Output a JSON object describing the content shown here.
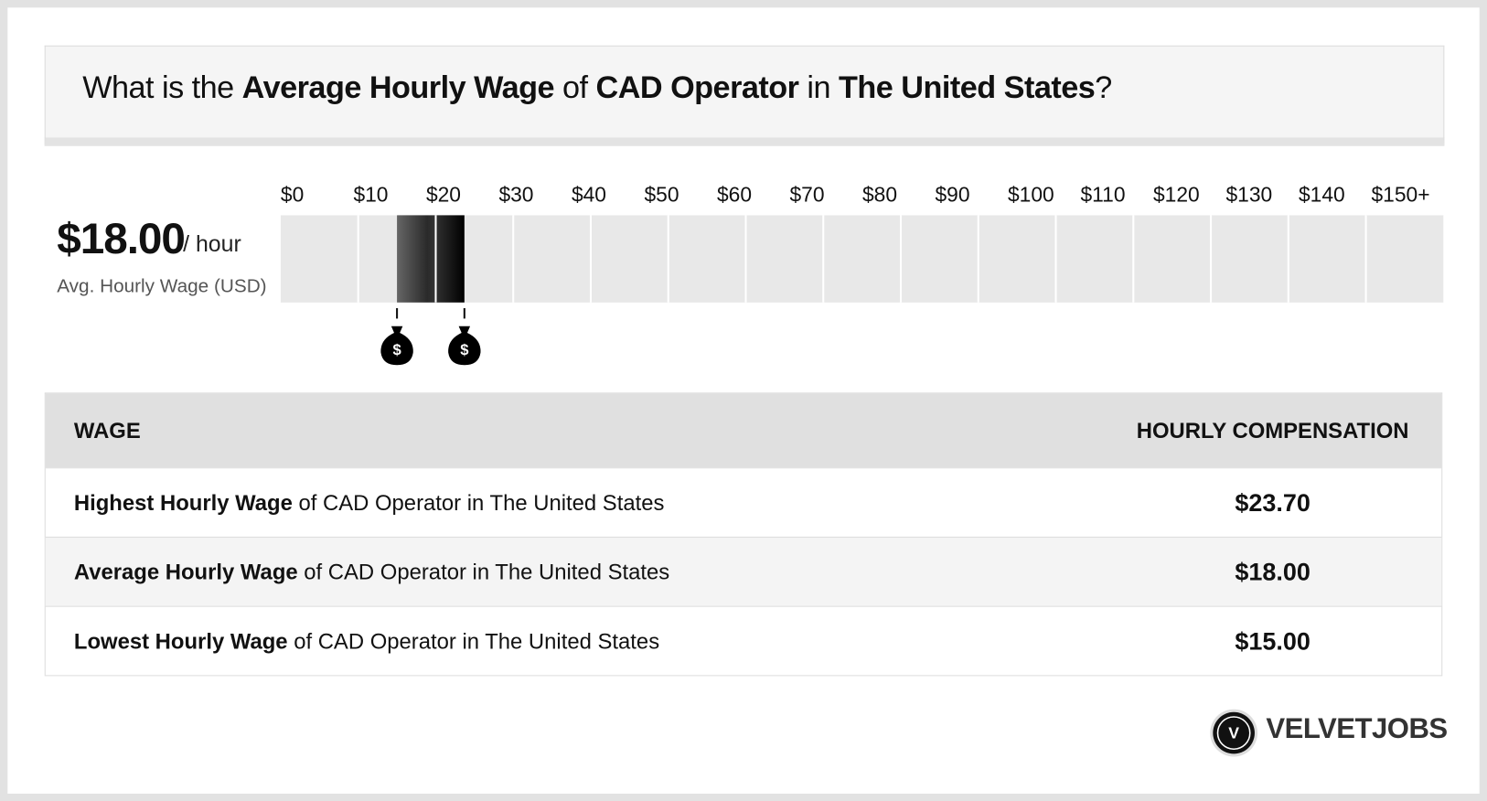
{
  "header": {
    "title_parts": [
      "What is the ",
      "Average Hourly Wage",
      " of ",
      "CAD Operator",
      " in ",
      "The United States",
      "?"
    ]
  },
  "summary": {
    "value": "$18.00",
    "unit": "/ hour",
    "label": "Avg. Hourly Wage (USD)"
  },
  "chart_data": {
    "type": "range",
    "low": 15,
    "high": 23.7,
    "xlim": [
      0,
      150
    ],
    "xticks": [
      {
        "value": 0,
        "label": "$0"
      },
      {
        "value": 10,
        "label": "$10"
      },
      {
        "value": 20,
        "label": "$20"
      },
      {
        "value": 30,
        "label": "$30"
      },
      {
        "value": 40,
        "label": "$40"
      },
      {
        "value": 50,
        "label": "$50"
      },
      {
        "value": 60,
        "label": "$60"
      },
      {
        "value": 70,
        "label": "$70"
      },
      {
        "value": 80,
        "label": "$80"
      },
      {
        "value": 90,
        "label": "$90"
      },
      {
        "value": 100,
        "label": "$100"
      },
      {
        "value": 110,
        "label": "$110"
      },
      {
        "value": 120,
        "label": "$120"
      },
      {
        "value": 130,
        "label": "$130"
      },
      {
        "value": 140,
        "label": "$140"
      },
      {
        "value": 150,
        "label": "$150+"
      }
    ],
    "marker_symbol": "$"
  },
  "table": {
    "headers": [
      "WAGE",
      "HOURLY COMPENSATION"
    ],
    "rows": [
      [
        [
          "Highest Hourly Wage",
          " of CAD Operator in The United States"
        ],
        "$23.70"
      ],
      [
        [
          "Average Hourly Wage",
          " of CAD Operator in The United States"
        ],
        "$18.00"
      ],
      [
        [
          "Lowest Hourly Wage",
          " of CAD Operator in The United States"
        ],
        "$15.00"
      ]
    ]
  },
  "brand": {
    "letter": "V",
    "name": "VELVETJOBS"
  }
}
